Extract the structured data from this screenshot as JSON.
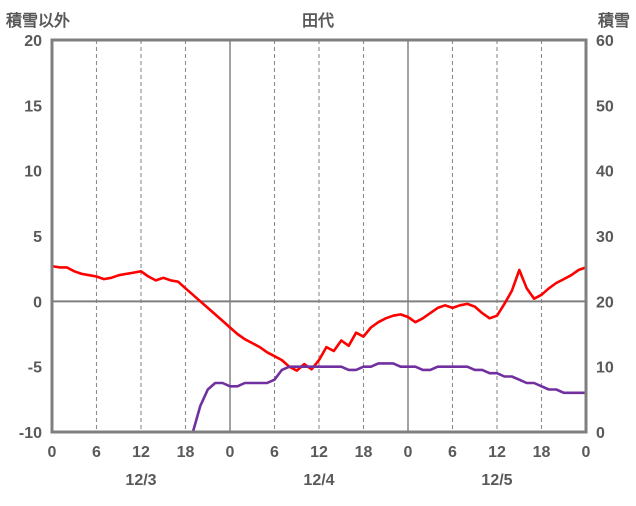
{
  "chart_data": {
    "type": "line",
    "title": "田代",
    "x_hours_total": 72,
    "x_tick_interval": 6,
    "x_tick_labels": [
      "0",
      "6",
      "12",
      "18",
      "0",
      "6",
      "12",
      "18",
      "0",
      "6",
      "12",
      "18",
      "0"
    ],
    "date_labels": [
      {
        "label": "12/3",
        "center_hour": 12
      },
      {
        "label": "12/4",
        "center_hour": 36
      },
      {
        "label": "12/5",
        "center_hour": 60
      }
    ],
    "left_axis": {
      "title": "積雪以外",
      "min": -10,
      "max": 20,
      "ticks": [
        20,
        15,
        10,
        5,
        0,
        -5,
        -10
      ]
    },
    "right_axis": {
      "title": "積雪",
      "min": 0,
      "max": 60,
      "ticks": [
        60,
        50,
        40,
        30,
        20,
        10,
        0
      ]
    },
    "grid": {
      "vertical_every_hours": 6,
      "solid_at_day_boundaries": true,
      "horizontal_zero_line": true,
      "legend": "none"
    },
    "colors": {
      "grid": "#8c8c8c",
      "border": "#7f7f7f",
      "text": "#595959"
    },
    "series": [
      {
        "name": "red",
        "axis": "left",
        "color": "#ff0000",
        "x_step_hours": 1,
        "values": [
          2.7,
          2.6,
          2.6,
          2.3,
          2.1,
          2.0,
          1.9,
          1.7,
          1.8,
          2.0,
          2.1,
          2.2,
          2.3,
          1.9,
          1.6,
          1.8,
          1.6,
          1.5,
          1.0,
          0.5,
          0.0,
          -0.5,
          -1.0,
          -1.5,
          -2.0,
          -2.5,
          -2.9,
          -3.2,
          -3.5,
          -3.9,
          -4.2,
          -4.5,
          -5.0,
          -5.3,
          -4.8,
          -5.2,
          -4.5,
          -3.5,
          -3.8,
          -3.0,
          -3.4,
          -2.4,
          -2.7,
          -2.0,
          -1.6,
          -1.3,
          -1.1,
          -1.0,
          -1.2,
          -1.6,
          -1.3,
          -0.9,
          -0.5,
          -0.3,
          -0.5,
          -0.3,
          -0.2,
          -0.4,
          -0.9,
          -1.3,
          -1.1,
          -0.2,
          0.8,
          2.4,
          1.0,
          0.2,
          0.5,
          1.0,
          1.4,
          1.7,
          2.0,
          2.4,
          2.6
        ]
      },
      {
        "name": "purple",
        "axis": "right",
        "color": "#7030a0",
        "x_step_hours": 1,
        "values": [
          0,
          0,
          0,
          0,
          0,
          0,
          0,
          0,
          0,
          0,
          0,
          0,
          0,
          0,
          0,
          0,
          0,
          0,
          0,
          0,
          4,
          6.5,
          7.5,
          7.5,
          7,
          7,
          7.5,
          7.5,
          7.5,
          7.5,
          8,
          9.5,
          10,
          10,
          10,
          10,
          10,
          10,
          10,
          10,
          9.5,
          9.5,
          10,
          10,
          10.5,
          10.5,
          10.5,
          10,
          10,
          10,
          9.5,
          9.5,
          10,
          10,
          10,
          10,
          10,
          9.5,
          9.5,
          9,
          9,
          8.5,
          8.5,
          8,
          7.5,
          7.5,
          7,
          6.5,
          6.5,
          6,
          6,
          6,
          6
        ]
      }
    ]
  }
}
